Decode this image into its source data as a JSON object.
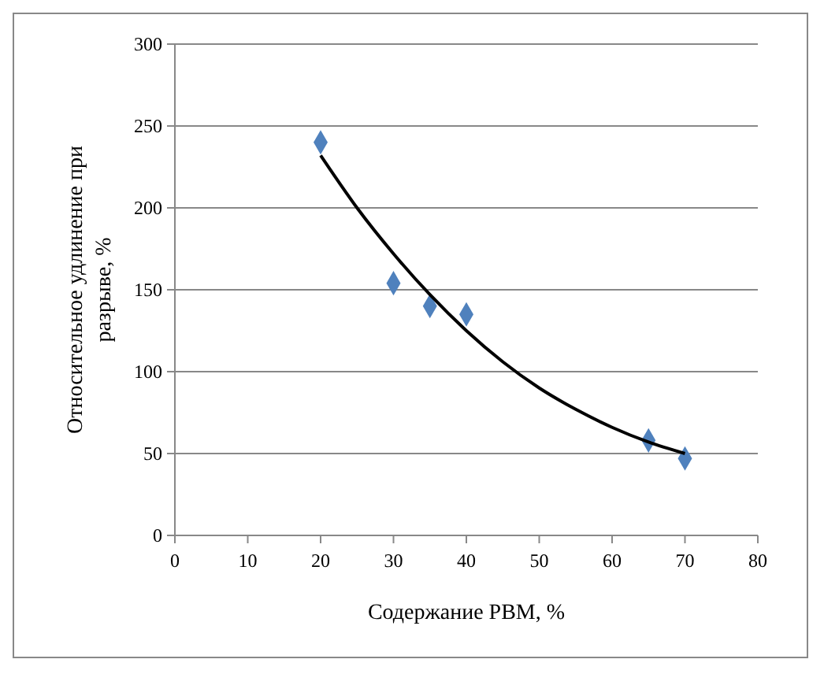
{
  "chart_data": {
    "type": "scatter",
    "xlabel": "Содержание РВМ, %",
    "ylabel": "Относительное удлинение при разрыве, %",
    "xlim": [
      0,
      80
    ],
    "xticks": [
      0,
      10,
      20,
      30,
      40,
      50,
      60,
      70,
      80
    ],
    "ylim": [
      0,
      300
    ],
    "yticks": [
      0,
      50,
      100,
      150,
      200,
      250,
      300
    ],
    "grid": "y",
    "marker": "diamond",
    "series": [
      {
        "color": "#4f81bd",
        "x": [
          20,
          30,
          35,
          40,
          65,
          70
        ],
        "values": [
          240,
          154,
          140,
          135,
          58,
          47
        ]
      },
      {
        "type": "line",
        "color": "#000000",
        "marker": "none",
        "x": [
          20,
          25,
          30,
          35,
          40,
          45,
          50,
          55,
          60,
          65,
          70
        ],
        "values": [
          232,
          200,
          172,
          147,
          125,
          106,
          90,
          77,
          66,
          57,
          50
        ]
      }
    ]
  }
}
